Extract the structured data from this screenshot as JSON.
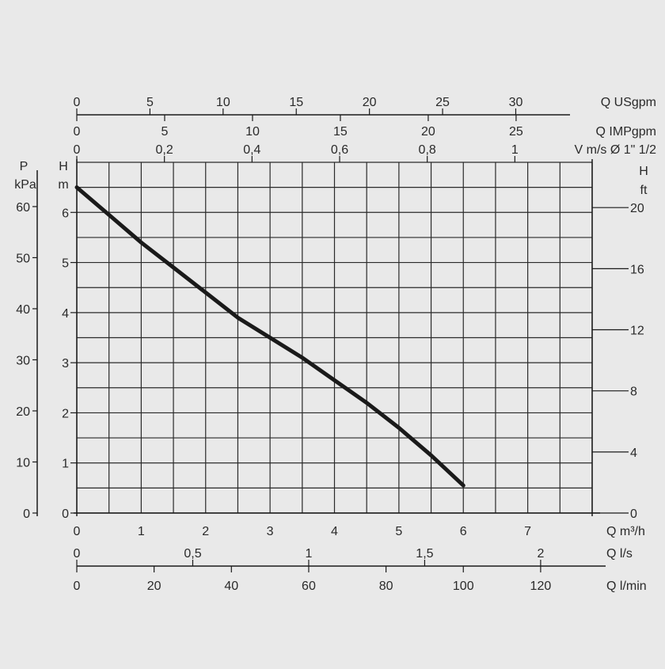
{
  "colors": {
    "background": "#e9e9e9",
    "ink": "#1a1a1a",
    "grid": "#2a2a2a"
  },
  "chart_data": {
    "type": "line",
    "x_axis": {
      "label": "Q m³/h",
      "range": [
        0,
        8
      ],
      "ticks": [
        0,
        1,
        2,
        3,
        4,
        5,
        6,
        7
      ],
      "grid_step": 0.5
    },
    "y_axis_left": {
      "label_top": "H",
      "label_bottom": "m",
      "range": [
        0,
        7
      ],
      "ticks": [
        0,
        1,
        2,
        3,
        4,
        5,
        6
      ],
      "grid_step": 0.5
    },
    "y_axis_pressure": {
      "label_top": "P",
      "label_bottom": "kPa",
      "ticks": [
        0,
        10,
        20,
        30,
        40,
        50,
        60
      ]
    },
    "y_axis_right": {
      "label_top": "H",
      "label_bottom": "ft",
      "ticks": [
        0,
        4,
        8,
        12,
        16,
        20
      ]
    },
    "top_axes": [
      {
        "name": "usgpm",
        "label": "Q USgpm",
        "ticks": [
          0,
          5,
          10,
          15,
          20,
          25,
          30
        ],
        "tick_labels": [
          "0",
          "5",
          "10",
          "15",
          "20",
          "25",
          "30"
        ]
      },
      {
        "name": "impgpm",
        "label": "Q IMPgpm",
        "ticks": [
          0,
          5,
          10,
          15,
          20,
          25
        ],
        "tick_labels": [
          "0",
          "5",
          "10",
          "15",
          "20",
          "25"
        ]
      },
      {
        "name": "velocity",
        "label": "V m/s Ø 1\" 1/2",
        "ticks": [
          0,
          0.2,
          0.4,
          0.6,
          0.8,
          1
        ],
        "tick_labels": [
          "0",
          "0,2",
          "0,4",
          "0,6",
          "0,8",
          "1"
        ]
      }
    ],
    "bottom_axes": [
      {
        "name": "ls",
        "label": "Q l/s",
        "ticks": [
          0,
          0.5,
          1,
          1.5,
          2
        ],
        "tick_labels": [
          "0",
          "0,5",
          "1",
          "1,5",
          "2"
        ]
      },
      {
        "name": "lmin",
        "label": "Q l/min",
        "ticks": [
          0,
          20,
          40,
          60,
          80,
          100,
          120
        ],
        "tick_labels": [
          "0",
          "20",
          "40",
          "60",
          "80",
          "100",
          "120"
        ]
      }
    ],
    "series": [
      {
        "x": [
          0,
          0.5,
          1,
          1.5,
          2,
          2.5,
          3,
          3.5,
          4,
          4.5,
          5,
          5.5,
          6
        ],
        "y": [
          6.5,
          5.95,
          5.4,
          4.9,
          4.4,
          3.9,
          3.5,
          3.1,
          2.65,
          2.2,
          1.7,
          1.15,
          0.55
        ]
      }
    ],
    "grid": true,
    "legend": "none"
  }
}
